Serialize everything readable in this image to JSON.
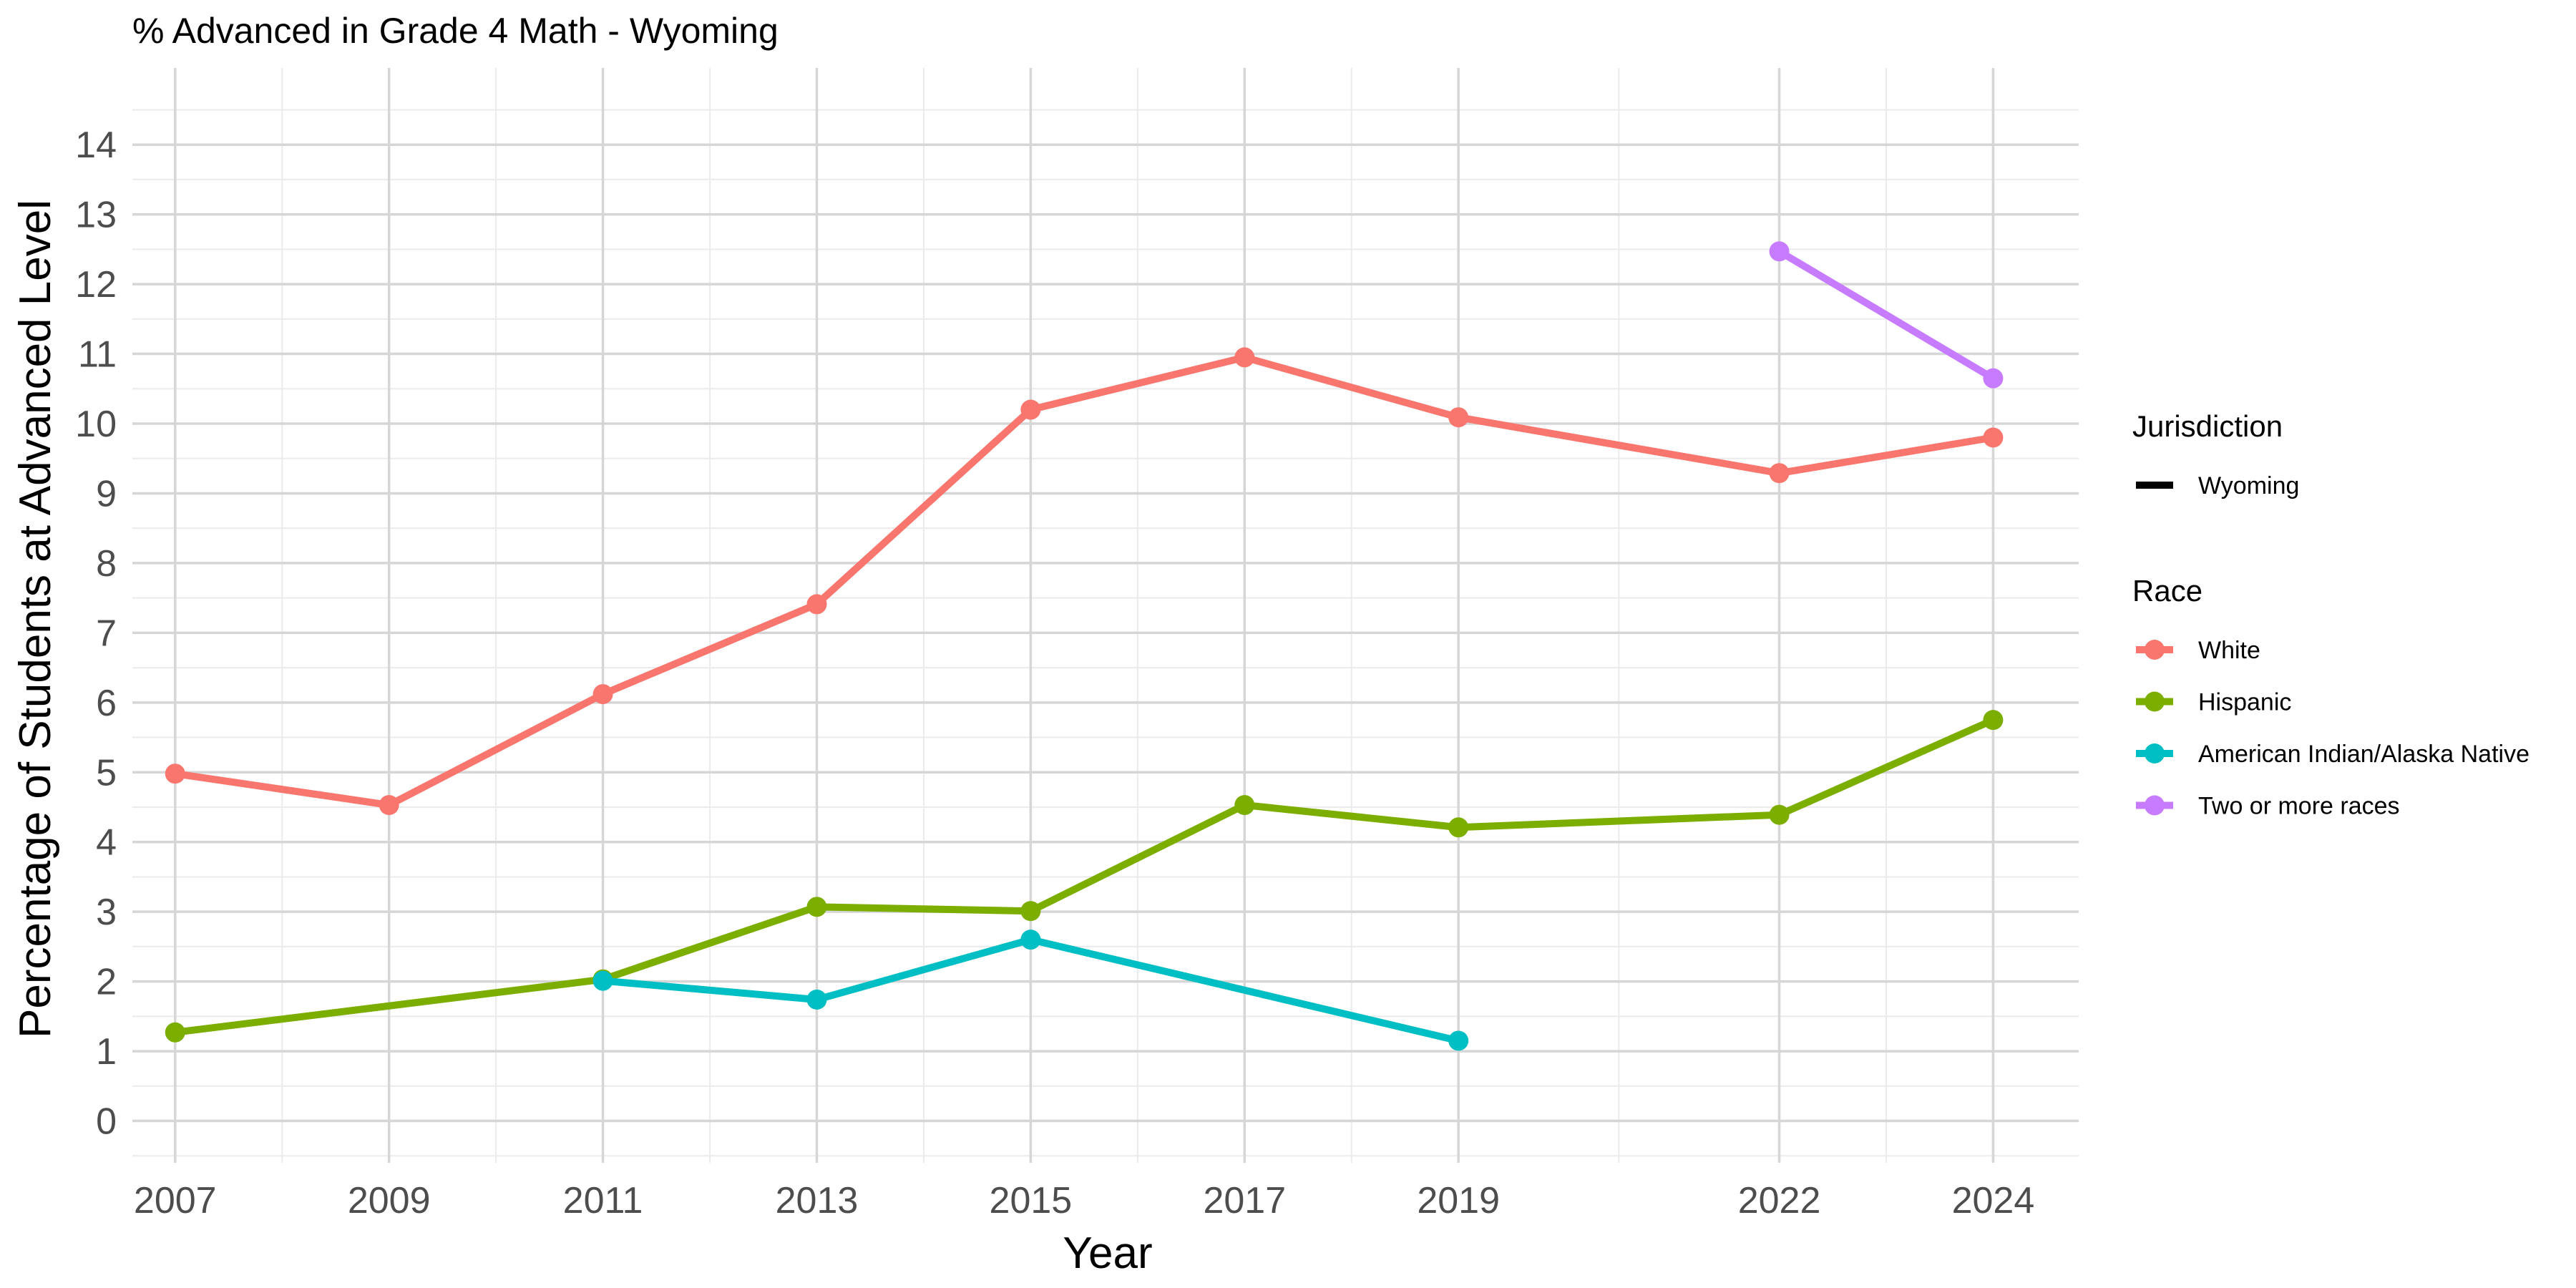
{
  "chart_data": {
    "type": "line",
    "title": "% Advanced in Grade 4 Math - Wyoming",
    "xlabel": "Year",
    "ylabel": "Percentage of Students at Advanced Level",
    "xlim": [
      2006.6,
      2024.8
    ],
    "ylim": [
      -0.6,
      15.1
    ],
    "x_ticks": [
      2007,
      2009,
      2011,
      2013,
      2015,
      2017,
      2019,
      2022,
      2024
    ],
    "y_ticks": [
      0,
      1,
      2,
      3,
      4,
      5,
      6,
      7,
      8,
      9,
      10,
      11,
      12,
      13,
      14
    ],
    "grid": true,
    "legend_position": "right",
    "legend": {
      "jurisdiction_title": "Jurisdiction",
      "jurisdiction_items": [
        {
          "label": "Wyoming",
          "color": "#000000"
        }
      ],
      "race_title": "Race"
    },
    "series": [
      {
        "name": "White",
        "color": "#F8766D",
        "x": [
          2007,
          2009,
          2011,
          2013,
          2015,
          2017,
          2019,
          2022,
          2024
        ],
        "y": [
          4.98,
          4.53,
          6.12,
          7.41,
          10.2,
          10.95,
          10.09,
          9.29,
          9.8
        ]
      },
      {
        "name": "Hispanic",
        "color": "#7CAE00",
        "x": [
          2007,
          2011,
          2013,
          2015,
          2017,
          2019,
          2022,
          2024
        ],
        "y": [
          1.27,
          2.03,
          3.07,
          3.01,
          4.53,
          4.21,
          4.39,
          5.75
        ]
      },
      {
        "name": "American Indian/Alaska Native",
        "color": "#00BFC4",
        "x": [
          2011,
          2013,
          2015,
          2019
        ],
        "y": [
          2.01,
          1.74,
          2.6,
          1.15
        ]
      },
      {
        "name": "Two or more races",
        "color": "#C77CFF",
        "x": [
          2022,
          2024
        ],
        "y": [
          12.47,
          10.65
        ]
      }
    ]
  }
}
